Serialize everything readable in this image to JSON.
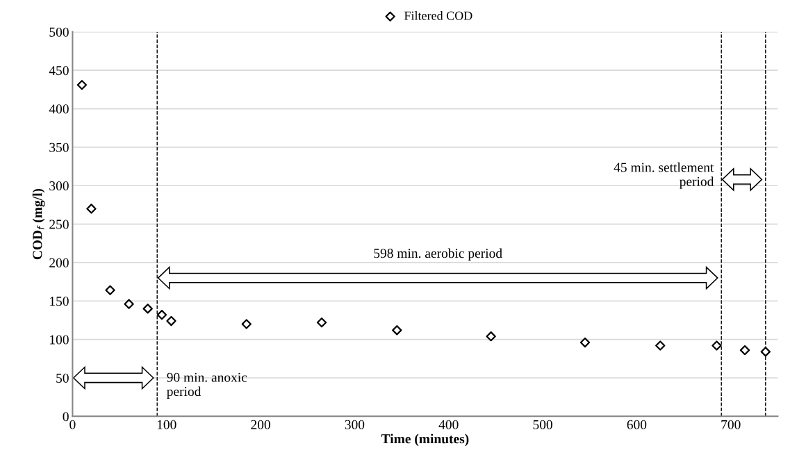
{
  "chart_data": {
    "type": "scatter",
    "xlabel": "Time (minutes)",
    "ylabel": "COD$_{f}$ (mg/l)",
    "x": [
      10,
      20,
      40,
      60,
      80,
      95,
      105,
      185,
      265,
      345,
      445,
      545,
      625,
      685,
      715,
      737
    ],
    "series": [
      {
        "name": "Filtered COD",
        "color": "#000000",
        "values": [
          431,
          270,
          164,
          146,
          140,
          132,
          124,
          120,
          122,
          112,
          104,
          96,
          92,
          92,
          86,
          84
        ]
      }
    ],
    "marker": "diamond",
    "xlim": [
      0,
      750
    ],
    "xticks": [
      0,
      100,
      200,
      300,
      400,
      500,
      600,
      700
    ],
    "ylim": [
      0,
      500
    ],
    "yticks": [
      0,
      50,
      100,
      150,
      200,
      250,
      300,
      350,
      400,
      450,
      500
    ],
    "grid": "y",
    "legend": "top",
    "ref_lines": [
      {
        "axis": "x",
        "value": 90,
        "line_style": "dashed",
        "color": "#000000"
      },
      {
        "axis": "x",
        "value": 690,
        "line_style": "dashed",
        "color": "#000000"
      },
      {
        "axis": "x",
        "value": 737,
        "line_style": "dashed",
        "color": "#000000"
      }
    ],
    "annotations": [
      "90 min. anoxic\nperiod",
      "598 min. aerobic period",
      "45 min. settlement\nperiod"
    ]
  }
}
